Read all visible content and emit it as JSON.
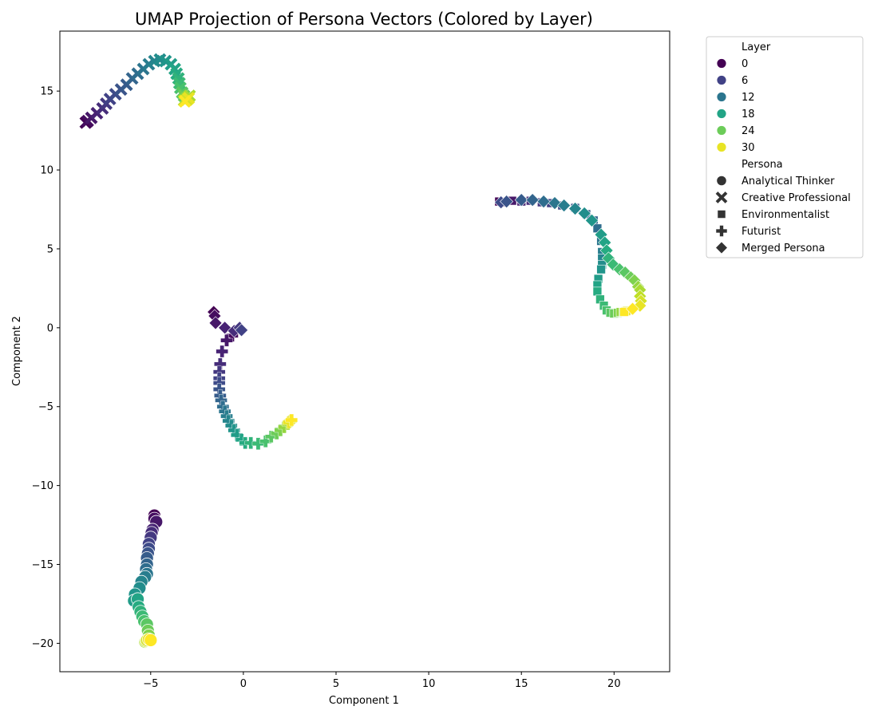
{
  "chart_data": {
    "type": "scatter",
    "title": "UMAP Projection of Persona Vectors (Colored by Layer)",
    "xlabel": "Component 1",
    "ylabel": "Component 2",
    "xlim": [
      -9.9,
      23.0
    ],
    "ylim": [
      -21.8,
      18.8
    ],
    "xticks": [
      -5,
      0,
      5,
      10,
      15,
      20
    ],
    "yticks": [
      -20,
      -15,
      -10,
      -5,
      0,
      5,
      10,
      15
    ],
    "xtick_labels": [
      "−5",
      "0",
      "5",
      "10",
      "15",
      "20"
    ],
    "ytick_labels": [
      "−20",
      "−15",
      "−10",
      "−5",
      "0",
      "5",
      "10",
      "15"
    ],
    "grid": false,
    "legend_placement": "outside-right",
    "colormap": "viridis",
    "layer_range": [
      0,
      31
    ],
    "legend": {
      "layer_title": "Layer",
      "layer_entries": [
        {
          "label": "0",
          "layer": 0
        },
        {
          "label": "6",
          "layer": 6
        },
        {
          "label": "12",
          "layer": 12
        },
        {
          "label": "18",
          "layer": 18
        },
        {
          "label": "24",
          "layer": 24
        },
        {
          "label": "30",
          "layer": 30
        }
      ],
      "persona_title": "Persona",
      "persona_entries": [
        {
          "label": "Analytical Thinker",
          "marker": "circle"
        },
        {
          "label": "Creative Professional",
          "marker": "x"
        },
        {
          "label": "Environmentalist",
          "marker": "square"
        },
        {
          "label": "Futurist",
          "marker": "plus"
        },
        {
          "label": "Merged Persona",
          "marker": "diamond"
        }
      ]
    },
    "series": [
      {
        "name": "Analytical Thinker",
        "marker": "circle",
        "points": [
          [
            -4.8,
            -11.9
          ],
          [
            -4.8,
            -12.1
          ],
          [
            -4.7,
            -12.3
          ],
          [
            -4.9,
            -12.8
          ],
          [
            -4.95,
            -13.0
          ],
          [
            -5.0,
            -13.3
          ],
          [
            -5.1,
            -13.7
          ],
          [
            -5.1,
            -14.0
          ],
          [
            -5.15,
            -14.3
          ],
          [
            -5.2,
            -14.6
          ],
          [
            -5.2,
            -15.0
          ],
          [
            -5.25,
            -15.3
          ],
          [
            -5.2,
            -15.6
          ],
          [
            -5.3,
            -15.8
          ],
          [
            -5.5,
            -16.1
          ],
          [
            -5.6,
            -16.5
          ],
          [
            -5.85,
            -16.9
          ],
          [
            -5.9,
            -17.3
          ],
          [
            -5.7,
            -17.2
          ],
          [
            -5.65,
            -17.7
          ],
          [
            -5.55,
            -18.0
          ],
          [
            -5.45,
            -18.3
          ],
          [
            -5.35,
            -18.6
          ],
          [
            -5.2,
            -18.8
          ],
          [
            -5.15,
            -19.2
          ],
          [
            -5.1,
            -19.5
          ],
          [
            -5.15,
            -19.8
          ],
          [
            -5.3,
            -19.9
          ],
          [
            -5.25,
            -19.85
          ],
          [
            -5.2,
            -19.8
          ],
          [
            -5.1,
            -19.75
          ],
          [
            -5.0,
            -19.8
          ]
        ]
      },
      {
        "name": "Creative Professional",
        "marker": "x",
        "points": [
          [
            -8.5,
            13.0
          ],
          [
            -8.4,
            13.1
          ],
          [
            -8.2,
            13.3
          ],
          [
            -7.9,
            13.6
          ],
          [
            -7.6,
            13.9
          ],
          [
            -7.4,
            14.2
          ],
          [
            -7.2,
            14.5
          ],
          [
            -6.9,
            14.8
          ],
          [
            -6.6,
            15.1
          ],
          [
            -6.3,
            15.4
          ],
          [
            -6.0,
            15.8
          ],
          [
            -5.7,
            16.1
          ],
          [
            -5.4,
            16.4
          ],
          [
            -5.1,
            16.7
          ],
          [
            -4.8,
            16.9
          ],
          [
            -4.5,
            17.0
          ],
          [
            -4.2,
            16.9
          ],
          [
            -3.9,
            16.7
          ],
          [
            -3.7,
            16.4
          ],
          [
            -3.6,
            16.1
          ],
          [
            -3.5,
            15.8
          ],
          [
            -3.45,
            15.5
          ],
          [
            -3.4,
            15.2
          ],
          [
            -3.3,
            14.9
          ],
          [
            -3.2,
            14.7
          ],
          [
            -3.1,
            14.5
          ],
          [
            -3.0,
            14.6
          ],
          [
            -2.9,
            14.7
          ],
          [
            -3.2,
            14.4
          ],
          [
            -3.05,
            14.45
          ],
          [
            -2.95,
            14.55
          ],
          [
            -3.15,
            14.35
          ]
        ]
      },
      {
        "name": "Environmentalist",
        "marker": "square",
        "points": [
          [
            13.8,
            8.0
          ],
          [
            14.0,
            7.95
          ],
          [
            14.5,
            8.05
          ],
          [
            15.0,
            8.0
          ],
          [
            15.5,
            8.05
          ],
          [
            16.1,
            7.95
          ],
          [
            16.6,
            7.9
          ],
          [
            17.2,
            7.75
          ],
          [
            17.9,
            7.6
          ],
          [
            18.5,
            7.2
          ],
          [
            18.9,
            6.8
          ],
          [
            19.1,
            6.3
          ],
          [
            19.3,
            5.5
          ],
          [
            19.35,
            4.8
          ],
          [
            19.35,
            4.4
          ],
          [
            19.35,
            4.0
          ],
          [
            19.3,
            3.7
          ],
          [
            19.15,
            3.1
          ],
          [
            19.1,
            2.7
          ],
          [
            19.1,
            2.3
          ],
          [
            19.25,
            1.8
          ],
          [
            19.45,
            1.4
          ],
          [
            19.6,
            1.1
          ],
          [
            19.8,
            0.95
          ],
          [
            20.0,
            0.9
          ],
          [
            20.2,
            0.95
          ],
          [
            20.35,
            1.0
          ],
          [
            20.5,
            1.0
          ],
          [
            20.6,
            1.05
          ],
          [
            20.7,
            1.1
          ],
          [
            20.65,
            1.05
          ],
          [
            20.55,
            1.0
          ]
        ]
      },
      {
        "name": "Futurist",
        "marker": "plus",
        "points": [
          [
            -0.4,
            -0.2
          ],
          [
            -0.6,
            -0.5
          ],
          [
            -0.9,
            -0.8
          ],
          [
            -1.15,
            -1.5
          ],
          [
            -1.25,
            -2.3
          ],
          [
            -1.3,
            -2.8
          ],
          [
            -1.3,
            -3.2
          ],
          [
            -1.3,
            -3.5
          ],
          [
            -1.3,
            -3.9
          ],
          [
            -1.25,
            -4.3
          ],
          [
            -1.2,
            -4.6
          ],
          [
            -1.1,
            -5.0
          ],
          [
            -1.0,
            -5.3
          ],
          [
            -0.9,
            -5.6
          ],
          [
            -0.8,
            -5.9
          ],
          [
            -0.65,
            -6.2
          ],
          [
            -0.5,
            -6.5
          ],
          [
            -0.35,
            -6.8
          ],
          [
            -0.1,
            -7.1
          ],
          [
            0.1,
            -7.3
          ],
          [
            0.4,
            -7.3
          ],
          [
            0.8,
            -7.35
          ],
          [
            1.2,
            -7.2
          ],
          [
            1.5,
            -6.9
          ],
          [
            1.8,
            -6.7
          ],
          [
            2.0,
            -6.5
          ],
          [
            2.2,
            -6.3
          ],
          [
            2.4,
            -6.1
          ],
          [
            2.55,
            -5.9
          ],
          [
            2.5,
            -5.95
          ],
          [
            2.45,
            -6.0
          ],
          [
            2.6,
            -5.85
          ]
        ]
      },
      {
        "name": "Merged Persona",
        "marker": "diamond",
        "points": [
          [
            -1.6,
            1.0
          ],
          [
            -1.55,
            0.75
          ],
          [
            -1.5,
            0.3
          ],
          [
            -1.0,
            0.0
          ],
          [
            -0.5,
            -0.2
          ],
          [
            -0.2,
            0.0
          ],
          [
            -0.1,
            -0.15
          ],
          [
            13.9,
            7.95
          ],
          [
            14.2,
            8.0
          ],
          [
            15.0,
            8.1
          ],
          [
            15.6,
            8.1
          ],
          [
            16.2,
            8.0
          ],
          [
            16.8,
            7.9
          ],
          [
            17.3,
            7.75
          ],
          [
            17.9,
            7.55
          ],
          [
            18.4,
            7.25
          ],
          [
            18.8,
            6.8
          ],
          [
            19.3,
            5.9
          ],
          [
            19.5,
            5.4
          ],
          [
            19.6,
            4.9
          ],
          [
            19.7,
            4.4
          ],
          [
            19.95,
            4.0
          ],
          [
            20.3,
            3.7
          ],
          [
            20.6,
            3.5
          ],
          [
            20.9,
            3.2
          ],
          [
            21.1,
            3.0
          ],
          [
            21.3,
            2.6
          ],
          [
            21.4,
            2.4
          ],
          [
            21.4,
            2.0
          ],
          [
            21.45,
            1.7
          ],
          [
            21.4,
            1.4
          ],
          [
            21.0,
            1.2
          ]
        ]
      }
    ]
  }
}
